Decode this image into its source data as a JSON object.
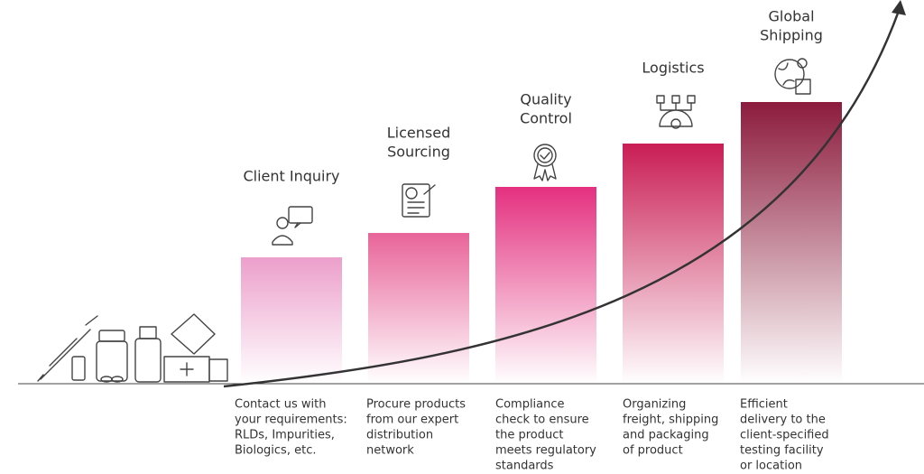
{
  "steps": [
    {
      "title": [
        "Client Inquiry"
      ],
      "description": [
        "Contact us with",
        "your requirements:",
        "RLDs, Impurities,",
        "Biologics, etc."
      ]
    },
    {
      "title": [
        "Licensed",
        "Sourcing"
      ],
      "description": [
        "Procure products",
        "from our expert",
        "distribution",
        "network"
      ]
    },
    {
      "title": [
        "Quality",
        "Control"
      ],
      "description": [
        "Compliance",
        "check to ensure",
        "the product",
        "meets regulatory",
        "standards"
      ]
    },
    {
      "title": [
        "Logistics"
      ],
      "description": [
        "Organizing",
        "freight, shipping",
        "and packaging",
        "of product"
      ]
    },
    {
      "title": [
        "Global",
        "Shipping"
      ],
      "description": [
        "Efficient",
        "delivery to the",
        "client-specified",
        "testing facility",
        "or location"
      ]
    }
  ]
}
